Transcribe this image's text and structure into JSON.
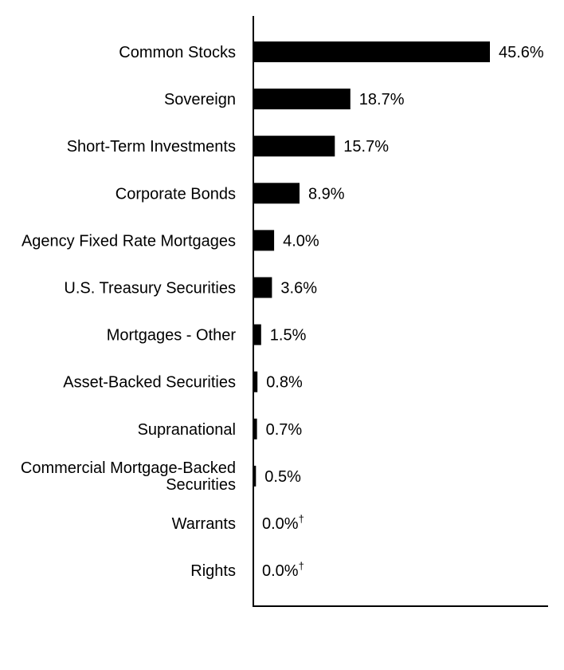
{
  "chart_data": {
    "type": "bar",
    "orientation": "horizontal",
    "title": "",
    "xlabel": "",
    "ylabel": "",
    "xlim": [
      0,
      50
    ],
    "grid": false,
    "bar_color": "#000000",
    "categories": [
      "Common Stocks",
      "Sovereign",
      "Short-Term Investments",
      "Corporate Bonds",
      "Agency Fixed Rate Mortgages",
      "U.S. Treasury Securities",
      "Mortgages - Other",
      "Asset-Backed Securities",
      "Supranational",
      "Commercial Mortgage-Backed Securities",
      "Warrants",
      "Rights"
    ],
    "values": [
      45.6,
      18.7,
      15.7,
      8.9,
      4.0,
      3.6,
      1.5,
      0.8,
      0.7,
      0.5,
      0.0,
      0.0
    ],
    "value_labels": [
      "45.6%",
      "18.7%",
      "15.7%",
      "8.9%",
      "4.0%",
      "3.6%",
      "1.5%",
      "0.8%",
      "0.7%",
      "0.5%",
      "0.0%",
      "0.0%"
    ],
    "footnote_marks": [
      "",
      "",
      "",
      "",
      "",
      "",
      "",
      "",
      "",
      "",
      "†",
      "†"
    ]
  }
}
